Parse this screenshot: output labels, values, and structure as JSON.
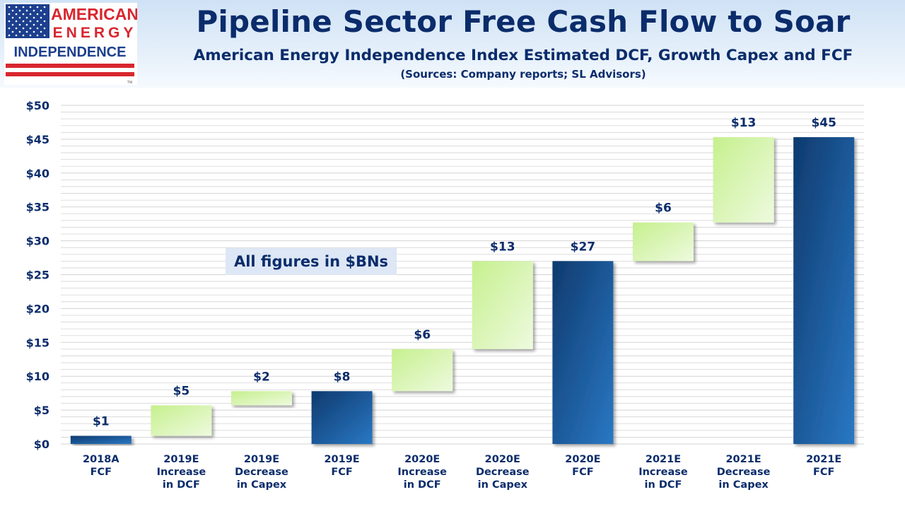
{
  "logo": {
    "line1": "AMERICAN",
    "line2": "ENERGY",
    "line3": "INDEPENDENCE",
    "trademark": "TM",
    "icon": "us-flag-icon"
  },
  "header": {
    "title": "Pipeline Sector Free Cash Flow to Soar",
    "subtitle": "American Energy Independence Index Estimated DCF, Growth Capex and FCF",
    "sources": "(Sources: Company reports; SL Advisors)"
  },
  "annotation": "All figures in $BNs",
  "chart_data": {
    "type": "bar",
    "subtype": "waterfall",
    "yticks": [
      "$0",
      "$5",
      "$10",
      "$15",
      "$20",
      "$25",
      "$30",
      "$35",
      "$40",
      "$45",
      "$50"
    ],
    "ylim": [
      0,
      50
    ],
    "grid": true,
    "legend": "none",
    "categories": [
      [
        "2018A",
        "FCF"
      ],
      [
        "2019E",
        "Increase",
        "in DCF"
      ],
      [
        "2019E",
        "Decrease",
        "in Capex"
      ],
      [
        "2019E",
        "FCF"
      ],
      [
        "2020E",
        "Increase",
        "in DCF"
      ],
      [
        "2020E",
        "Decrease",
        "in Capex"
      ],
      [
        "2020E",
        "FCF"
      ],
      [
        "2021E",
        "Increase",
        "in DCF"
      ],
      [
        "2021E",
        "Decrease",
        "in Capex"
      ],
      [
        "2021E",
        "FCF"
      ]
    ],
    "bars": [
      {
        "kind": "total",
        "low": 0,
        "high": 1.2,
        "label": "$1"
      },
      {
        "kind": "increment",
        "low": 1.2,
        "high": 5.7,
        "label": "$5"
      },
      {
        "kind": "increment",
        "low": 5.7,
        "high": 7.8,
        "label": "$2"
      },
      {
        "kind": "total",
        "low": 0,
        "high": 7.8,
        "label": "$8"
      },
      {
        "kind": "increment",
        "low": 7.8,
        "high": 14.0,
        "label": "$6"
      },
      {
        "kind": "increment",
        "low": 14.0,
        "high": 27.0,
        "label": "$13"
      },
      {
        "kind": "total",
        "low": 0,
        "high": 27.0,
        "label": "$27"
      },
      {
        "kind": "increment",
        "low": 27.0,
        "high": 32.7,
        "label": "$6"
      },
      {
        "kind": "increment",
        "low": 32.7,
        "high": 45.3,
        "label": "$13"
      },
      {
        "kind": "total",
        "low": 0,
        "high": 45.3,
        "label": "$45"
      }
    ],
    "colors": {
      "total_top": "#0e3a6e",
      "total_bottom": "#2a78c4",
      "increment_top": "#c6f08e",
      "increment_bottom": "#eefadf",
      "grid": "#d3d3d3",
      "text": "#0b2c6b"
    }
  }
}
